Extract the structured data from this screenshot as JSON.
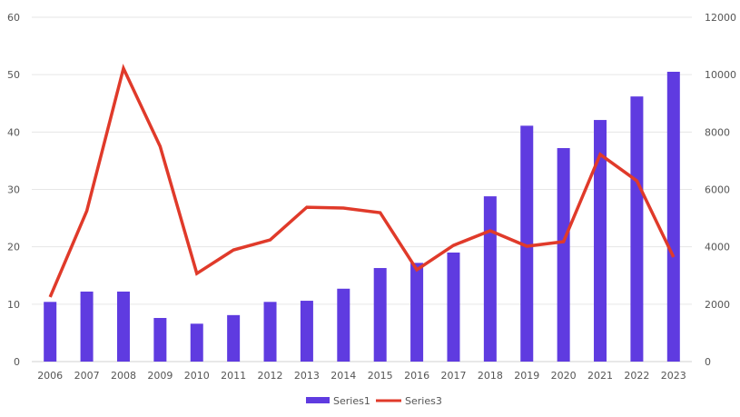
{
  "chart_data": {
    "type": "bar+line",
    "categories": [
      "2006",
      "2007",
      "2008",
      "2009",
      "2010",
      "2011",
      "2012",
      "2013",
      "2014",
      "2015",
      "2016",
      "2017",
      "2018",
      "2019",
      "2020",
      "2021",
      "2022",
      "2023"
    ],
    "series": [
      {
        "name": "Series1",
        "type": "bar",
        "axis": "left",
        "color": "#5f3be0",
        "values": [
          10.4,
          12.2,
          12.2,
          7.6,
          6.6,
          8.1,
          10.4,
          10.6,
          12.7,
          16.3,
          17.2,
          19.0,
          28.8,
          41.1,
          37.2,
          42.1,
          46.2,
          50.5
        ]
      },
      {
        "name": "Series3",
        "type": "line",
        "axis": "right",
        "color": "#e03a2a",
        "values": [
          2250,
          5250,
          10220,
          7500,
          3070,
          3890,
          4240,
          5380,
          5350,
          5190,
          3200,
          4050,
          4560,
          4020,
          4180,
          7220,
          6300,
          3640
        ]
      }
    ],
    "ylim_left": [
      0,
      60
    ],
    "yticks_left": [
      "0",
      "10",
      "20",
      "30",
      "40",
      "50",
      "60"
    ],
    "ylim_right": [
      0,
      12000
    ],
    "yticks_right": [
      "0",
      "2000",
      "4000",
      "6000",
      "8000",
      "10000",
      "12000"
    ],
    "grid": true,
    "legend": "bottom"
  }
}
